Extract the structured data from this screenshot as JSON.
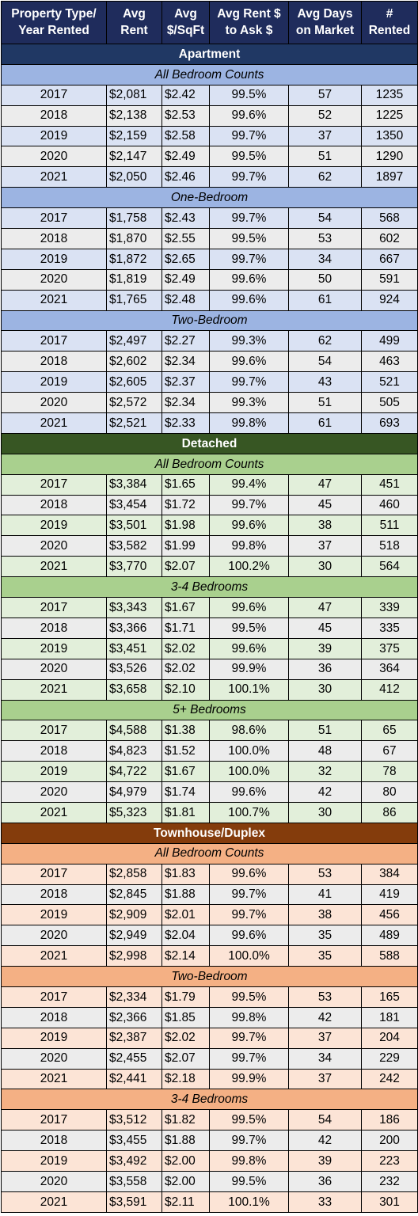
{
  "header": {
    "columns": [
      [
        "Property Type/",
        "Year Rented"
      ],
      [
        "Avg",
        "Rent"
      ],
      [
        "Avg",
        "$/SqFt"
      ],
      [
        "Avg Rent $",
        "to Ask $"
      ],
      [
        "Avg Days",
        "on Market"
      ],
      [
        "#",
        "Rented"
      ]
    ]
  },
  "sections": [
    {
      "title": "Apartment",
      "colors": {
        "head": "#203864",
        "group": "#9cb4e2",
        "row": "#dae2f3"
      },
      "groups": [
        {
          "title": "All Bedroom Counts",
          "rows": [
            [
              "2017",
              "$2,081",
              "$2.42",
              "99.5%",
              "57",
              "1235"
            ],
            [
              "2018",
              "$2,138",
              "$2.53",
              "99.6%",
              "52",
              "1225"
            ],
            [
              "2019",
              "$2,159",
              "$2.58",
              "99.7%",
              "37",
              "1350"
            ],
            [
              "2020",
              "$2,147",
              "$2.49",
              "99.5%",
              "51",
              "1290"
            ],
            [
              "2021",
              "$2,050",
              "$2.46",
              "99.7%",
              "62",
              "1897"
            ]
          ]
        },
        {
          "title": "One-Bedroom",
          "rows": [
            [
              "2017",
              "$1,758",
              "$2.43",
              "99.7%",
              "54",
              "568"
            ],
            [
              "2018",
              "$1,870",
              "$2.55",
              "99.5%",
              "53",
              "602"
            ],
            [
              "2019",
              "$1,872",
              "$2.65",
              "99.7%",
              "34",
              "667"
            ],
            [
              "2020",
              "$1,819",
              "$2.49",
              "99.6%",
              "50",
              "591"
            ],
            [
              "2021",
              "$1,765",
              "$2.48",
              "99.6%",
              "61",
              "924"
            ]
          ]
        },
        {
          "title": "Two-Bedroom",
          "rows": [
            [
              "2017",
              "$2,497",
              "$2.27",
              "99.3%",
              "62",
              "499"
            ],
            [
              "2018",
              "$2,602",
              "$2.34",
              "99.6%",
              "54",
              "463"
            ],
            [
              "2019",
              "$2,605",
              "$2.37",
              "99.7%",
              "43",
              "521"
            ],
            [
              "2020",
              "$2,572",
              "$2.34",
              "99.3%",
              "51",
              "505"
            ],
            [
              "2021",
              "$2,521",
              "$2.33",
              "99.8%",
              "61",
              "693"
            ]
          ]
        }
      ]
    },
    {
      "title": "Detached",
      "colors": {
        "head": "#375623",
        "group": "#a9d08e",
        "row": "#e2efda"
      },
      "groups": [
        {
          "title": "All Bedroom Counts",
          "rows": [
            [
              "2017",
              "$3,384",
              "$1.65",
              "99.4%",
              "47",
              "451"
            ],
            [
              "2018",
              "$3,454",
              "$1.72",
              "99.7%",
              "45",
              "460"
            ],
            [
              "2019",
              "$3,501",
              "$1.98",
              "99.6%",
              "38",
              "511"
            ],
            [
              "2020",
              "$3,582",
              "$1.99",
              "99.8%",
              "37",
              "518"
            ],
            [
              "2021",
              "$3,770",
              "$2.07",
              "100.2%",
              "30",
              "564"
            ]
          ]
        },
        {
          "title": "3-4 Bedrooms",
          "rows": [
            [
              "2017",
              "$3,343",
              "$1.67",
              "99.6%",
              "47",
              "339"
            ],
            [
              "2018",
              "$3,366",
              "$1.71",
              "99.5%",
              "45",
              "335"
            ],
            [
              "2019",
              "$3,451",
              "$2.02",
              "99.6%",
              "39",
              "375"
            ],
            [
              "2020",
              "$3,526",
              "$2.02",
              "99.9%",
              "36",
              "364"
            ],
            [
              "2021",
              "$3,658",
              "$2.10",
              "100.1%",
              "30",
              "412"
            ]
          ]
        },
        {
          "title": "5+ Bedrooms",
          "rows": [
            [
              "2017",
              "$4,588",
              "$1.38",
              "98.6%",
              "51",
              "65"
            ],
            [
              "2018",
              "$4,823",
              "$1.52",
              "100.0%",
              "48",
              "67"
            ],
            [
              "2019",
              "$4,722",
              "$1.67",
              "100.0%",
              "32",
              "78"
            ],
            [
              "2020",
              "$4,979",
              "$1.74",
              "99.6%",
              "42",
              "80"
            ],
            [
              "2021",
              "$5,323",
              "$1.81",
              "100.7%",
              "30",
              "86"
            ]
          ]
        }
      ]
    },
    {
      "title": "Townhouse/Duplex",
      "colors": {
        "head": "#843c0c",
        "group": "#f4b084",
        "row": "#fce4d6"
      },
      "groups": [
        {
          "title": "All Bedroom Counts",
          "rows": [
            [
              "2017",
              "$2,858",
              "$1.83",
              "99.6%",
              "53",
              "384"
            ],
            [
              "2018",
              "$2,845",
              "$1.88",
              "99.7%",
              "41",
              "419"
            ],
            [
              "2019",
              "$2,909",
              "$2.01",
              "99.7%",
              "38",
              "456"
            ],
            [
              "2020",
              "$2,949",
              "$2.04",
              "99.6%",
              "35",
              "489"
            ],
            [
              "2021",
              "$2,998",
              "$2.14",
              "100.0%",
              "35",
              "588"
            ]
          ]
        },
        {
          "title": "Two-Bedroom",
          "rows": [
            [
              "2017",
              "$2,334",
              "$1.79",
              "99.5%",
              "53",
              "165"
            ],
            [
              "2018",
              "$2,366",
              "$1.85",
              "99.8%",
              "42",
              "181"
            ],
            [
              "2019",
              "$2,387",
              "$2.02",
              "99.7%",
              "37",
              "204"
            ],
            [
              "2020",
              "$2,455",
              "$2.07",
              "99.7%",
              "34",
              "229"
            ],
            [
              "2021",
              "$2,441",
              "$2.18",
              "99.9%",
              "37",
              "242"
            ]
          ]
        },
        {
          "title": "3-4 Bedrooms",
          "rows": [
            [
              "2017",
              "$3,512",
              "$1.82",
              "99.5%",
              "54",
              "186"
            ],
            [
              "2018",
              "$3,455",
              "$1.88",
              "99.7%",
              "42",
              "200"
            ],
            [
              "2019",
              "$3,492",
              "$2.00",
              "99.8%",
              "39",
              "223"
            ],
            [
              "2020",
              "$3,558",
              "$2.00",
              "99.5%",
              "36",
              "232"
            ],
            [
              "2021",
              "$3,591",
              "$2.11",
              "100.1%",
              "33",
              "301"
            ]
          ]
        }
      ]
    }
  ]
}
